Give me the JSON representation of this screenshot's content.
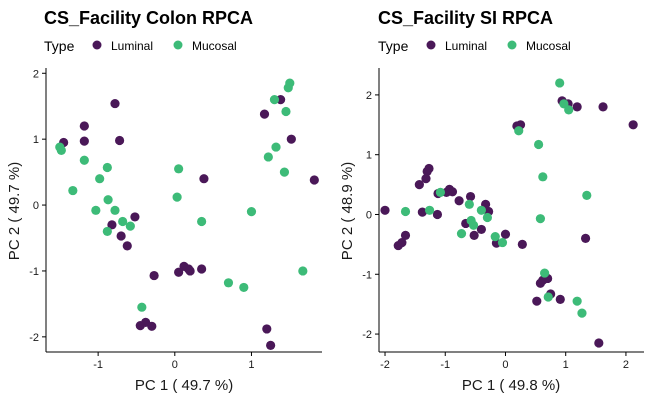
{
  "colors": {
    "Luminal": "#4a1858",
    "Mucosal": "#3dbb78",
    "axis": "#000000",
    "text": "#1a1a1a"
  },
  "chart_data": [
    {
      "type": "scatter",
      "title": "CS_Facility Colon RPCA",
      "xlabel": "PC 1 ( 49.7 %)",
      "ylabel": "PC 2 ( 49.7 %)",
      "xlim": [
        -1.68,
        1.92
      ],
      "ylim": [
        -2.23,
        2.08
      ],
      "xticks": [
        -1,
        0,
        1
      ],
      "yticks": [
        -2,
        -1,
        0,
        1,
        2
      ],
      "grid": false,
      "legend": {
        "title": "Type",
        "position": "top-left",
        "entries": [
          "Luminal",
          "Mucosal"
        ]
      },
      "series": [
        {
          "name": "Luminal",
          "x": [
            -1.45,
            -1.18,
            -1.18,
            -0.78,
            -0.72,
            -0.82,
            -0.7,
            -0.62,
            -0.52,
            -0.45,
            -0.27,
            -0.38,
            -0.3,
            0.05,
            0.12,
            0.18,
            0.2,
            0.35,
            0.38,
            1.17,
            1.38,
            1.52,
            1.2,
            1.25,
            1.82
          ],
          "y": [
            0.95,
            1.2,
            0.97,
            1.54,
            0.98,
            -0.3,
            -0.47,
            -0.62,
            -0.18,
            -1.83,
            -1.07,
            -1.78,
            -1.84,
            -1.02,
            -0.93,
            -0.97,
            -1.0,
            -0.97,
            0.4,
            1.38,
            1.6,
            1.0,
            -1.88,
            -2.13,
            0.38
          ]
        },
        {
          "name": "Mucosal",
          "x": [
            -1.5,
            -1.48,
            -1.33,
            -1.18,
            -0.98,
            -1.03,
            -0.88,
            -0.87,
            -0.78,
            -0.88,
            -0.68,
            -0.58,
            -0.43,
            0.03,
            0.05,
            0.35,
            0.7,
            0.9,
            1.0,
            1.22,
            1.3,
            1.32,
            1.43,
            1.45,
            1.48,
            1.5,
            1.67
          ],
          "y": [
            0.88,
            0.83,
            0.22,
            0.68,
            0.4,
            -0.08,
            0.57,
            0.08,
            -0.08,
            -0.4,
            -0.25,
            -0.32,
            -1.55,
            0.12,
            0.55,
            -0.25,
            -1.18,
            -1.25,
            -0.1,
            0.73,
            1.6,
            0.88,
            0.5,
            1.42,
            1.78,
            1.85,
            -1.0
          ]
        }
      ]
    },
    {
      "type": "scatter",
      "title": "CS_Facility SI RPCA",
      "xlabel": "PC 1 ( 49.8 %)",
      "ylabel": "PC 2 ( 48.9 %)",
      "xlim": [
        -2.1,
        2.3
      ],
      "ylim": [
        -2.3,
        2.45
      ],
      "xticks": [
        -2,
        -1,
        0,
        1,
        2
      ],
      "yticks": [
        -2,
        -1,
        0,
        1,
        2
      ],
      "grid": false,
      "legend": {
        "title": "Type",
        "position": "top-left",
        "entries": [
          "Luminal",
          "Mucosal"
        ]
      },
      "series": [
        {
          "name": "Luminal",
          "x": [
            -2.0,
            -1.78,
            -1.72,
            -1.66,
            -1.43,
            -1.38,
            -1.32,
            -1.3,
            -1.27,
            -1.13,
            -1.12,
            -0.98,
            -0.93,
            -0.88,
            -0.77,
            -0.66,
            -0.58,
            -0.52,
            -0.4,
            -0.33,
            -0.28,
            -0.15,
            0.0,
            0.19,
            0.25,
            0.28,
            0.52,
            0.58,
            0.62,
            0.7,
            0.75,
            0.91,
            0.94,
            1.04,
            1.19,
            1.33,
            1.55,
            1.62,
            2.12
          ],
          "y": [
            0.07,
            -0.52,
            -0.47,
            -0.35,
            0.5,
            0.04,
            0.6,
            0.72,
            0.77,
            0.0,
            0.35,
            0.37,
            0.42,
            0.38,
            0.23,
            -0.15,
            0.3,
            -0.35,
            -0.25,
            0.17,
            0.05,
            -0.48,
            -0.33,
            1.48,
            1.5,
            -0.5,
            -1.45,
            -1.15,
            -1.1,
            -1.07,
            -1.33,
            -1.42,
            1.9,
            1.85,
            1.8,
            -0.4,
            -2.15,
            1.8,
            1.5
          ]
        },
        {
          "name": "Mucosal",
          "x": [
            -1.66,
            -1.26,
            -1.08,
            -0.73,
            -0.6,
            -0.57,
            -0.53,
            -0.4,
            -0.3,
            -0.17,
            -0.05,
            0.22,
            0.55,
            0.58,
            0.62,
            0.65,
            0.71,
            0.9,
            0.97,
            1.05,
            1.19,
            1.27,
            1.35
          ],
          "y": [
            0.05,
            0.07,
            0.37,
            -0.32,
            0.17,
            -0.1,
            -0.18,
            0.07,
            -0.05,
            -0.37,
            -0.47,
            1.4,
            1.17,
            -0.07,
            0.63,
            -0.98,
            -1.38,
            2.2,
            1.85,
            1.75,
            -1.45,
            -1.65,
            0.32
          ]
        }
      ]
    }
  ]
}
